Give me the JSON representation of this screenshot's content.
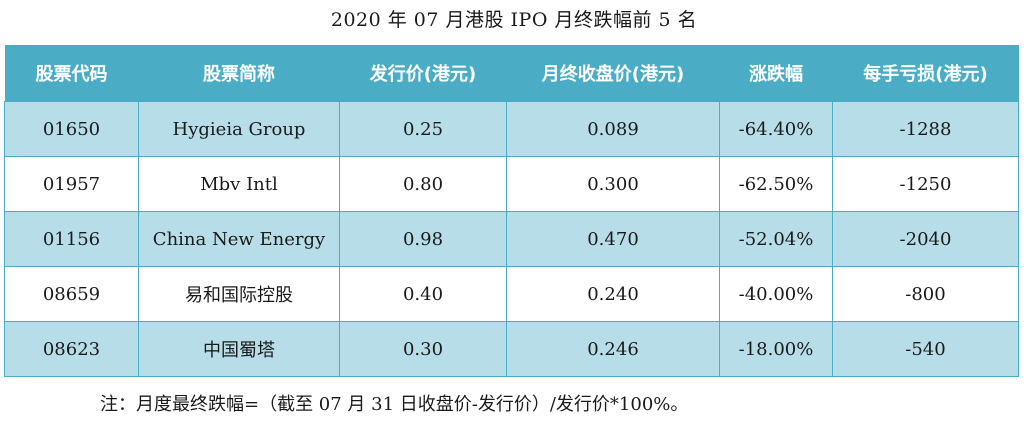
{
  "title": "2020 年 07 月港股 IPO 月终跌幅前 5 名",
  "table": {
    "headers": [
      "股票代码",
      "股票简称",
      "发行价(港元)",
      "月终收盘价(港元)",
      "涨跌幅",
      "每手亏损(港元)"
    ],
    "rows": [
      {
        "code": "01650",
        "name": "Hygieia Group",
        "issue_price": "0.25",
        "close_price": "0.089",
        "change": "-64.40%",
        "loss": "-1288"
      },
      {
        "code": "01957",
        "name": "Mbv Intl",
        "issue_price": "0.80",
        "close_price": "0.300",
        "change": "-62.50%",
        "loss": "-1250"
      },
      {
        "code": "01156",
        "name": "China New Energy",
        "issue_price": "0.98",
        "close_price": "0.470",
        "change": "-52.04%",
        "loss": "-2040"
      },
      {
        "code": "08659",
        "name": "易和国际控股",
        "issue_price": "0.40",
        "close_price": "0.240",
        "change": "-40.00%",
        "loss": "-800"
      },
      {
        "code": "08623",
        "name": "中国蜀塔",
        "issue_price": "0.30",
        "close_price": "0.246",
        "change": "-18.00%",
        "loss": "-540"
      }
    ]
  },
  "note": "注：月度最终跌幅=（截至 07 月 31 日收盘价-发行价）/发行价*100%。",
  "colors": {
    "header_bg": "#4bacc6",
    "stripe_bg": "#b7dee8",
    "border": "#4bacc6"
  }
}
